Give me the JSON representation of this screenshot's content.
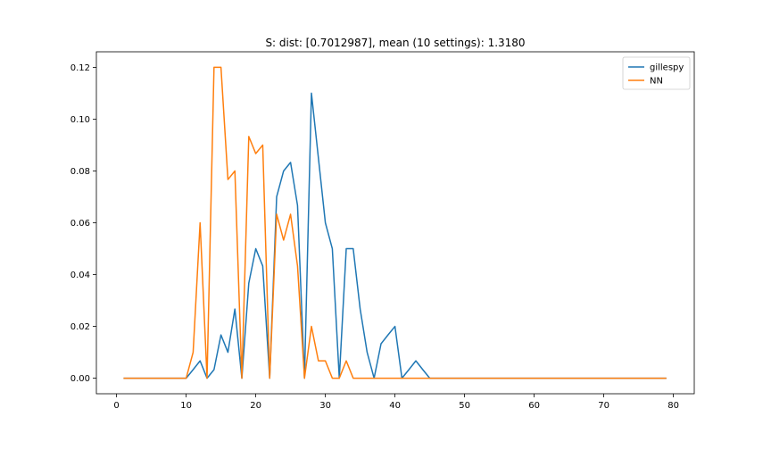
{
  "chart_data": {
    "type": "line",
    "title": "S: dist: [0.7012987], mean (10 settings): 1.3180",
    "xlabel": "",
    "ylabel": "",
    "xlim": [
      -2.9,
      83
    ],
    "ylim": [
      -0.006,
      0.126
    ],
    "x_ticks": [
      0,
      10,
      20,
      30,
      40,
      50,
      60,
      70,
      80
    ],
    "y_ticks": [
      0.0,
      0.02,
      0.04,
      0.06,
      0.08,
      0.1,
      0.12
    ],
    "y_tick_labels": [
      "0.00",
      "0.02",
      "0.04",
      "0.06",
      "0.08",
      "0.10",
      "0.12"
    ],
    "grid": false,
    "legend_position": "top-right",
    "series": [
      {
        "name": "gillespy",
        "color": "#1f77b4",
        "x": [
          1,
          2,
          3,
          4,
          5,
          6,
          7,
          8,
          9,
          10,
          11,
          12,
          13,
          14,
          15,
          16,
          17,
          18,
          19,
          20,
          21,
          22,
          23,
          24,
          25,
          26,
          27,
          28,
          29,
          30,
          31,
          32,
          33,
          34,
          35,
          36,
          37,
          38,
          39,
          40,
          41,
          42,
          43,
          44,
          45,
          46,
          47,
          48,
          49,
          50,
          51,
          52,
          53,
          54,
          55,
          56,
          57,
          58,
          59,
          60,
          61,
          62,
          63,
          64,
          65,
          66,
          67,
          68,
          69,
          70,
          71,
          72,
          73,
          74,
          75,
          76,
          77,
          78,
          79
        ],
        "values": [
          0,
          0,
          0,
          0,
          0,
          0,
          0,
          0,
          0,
          0,
          0.0033,
          0.0067,
          0,
          0.0033,
          0.0167,
          0.01,
          0.0267,
          0,
          0.0367,
          0.05,
          0.0433,
          0,
          0.07,
          0.08,
          0.0833,
          0.0667,
          0,
          0.11,
          0.085,
          0.06,
          0.05,
          0,
          0.05,
          0.05,
          0.0267,
          0.01,
          0,
          0.0133,
          0.0167,
          0.02,
          0,
          0.0033,
          0.0067,
          0.0033,
          0,
          0,
          0,
          0,
          0,
          0,
          0,
          0,
          0,
          0,
          0,
          0,
          0,
          0,
          0,
          0,
          0,
          0,
          0,
          0,
          0,
          0,
          0,
          0,
          0,
          0,
          0,
          0,
          0,
          0,
          0,
          0,
          0,
          0,
          0
        ]
      },
      {
        "name": "NN",
        "color": "#ff7f0e",
        "x": [
          1,
          2,
          3,
          4,
          5,
          6,
          7,
          8,
          9,
          10,
          11,
          12,
          13,
          14,
          15,
          16,
          17,
          18,
          19,
          20,
          21,
          22,
          23,
          24,
          25,
          26,
          27,
          28,
          29,
          30,
          31,
          32,
          33,
          34,
          35,
          36,
          37,
          38,
          39,
          40,
          41,
          42,
          43,
          44,
          45,
          46,
          47,
          48,
          49,
          50,
          51,
          52,
          53,
          54,
          55,
          56,
          57,
          58,
          59,
          60,
          61,
          62,
          63,
          64,
          65,
          66,
          67,
          68,
          69,
          70,
          71,
          72,
          73,
          74,
          75,
          76,
          77,
          78,
          79
        ],
        "values": [
          0,
          0,
          0,
          0,
          0,
          0,
          0,
          0,
          0,
          0,
          0.01,
          0.06,
          0,
          0.12,
          0.12,
          0.0767,
          0.08,
          0,
          0.0933,
          0.0867,
          0.09,
          0,
          0.0633,
          0.0533,
          0.0633,
          0.0433,
          0,
          0.02,
          0.0067,
          0.0067,
          0,
          0,
          0.0067,
          0,
          0,
          0,
          0,
          0,
          0,
          0,
          0,
          0,
          0,
          0,
          0,
          0,
          0,
          0,
          0,
          0,
          0,
          0,
          0,
          0,
          0,
          0,
          0,
          0,
          0,
          0,
          0,
          0,
          0,
          0,
          0,
          0,
          0,
          0,
          0,
          0,
          0,
          0,
          0,
          0,
          0,
          0,
          0,
          0,
          0
        ]
      }
    ]
  }
}
